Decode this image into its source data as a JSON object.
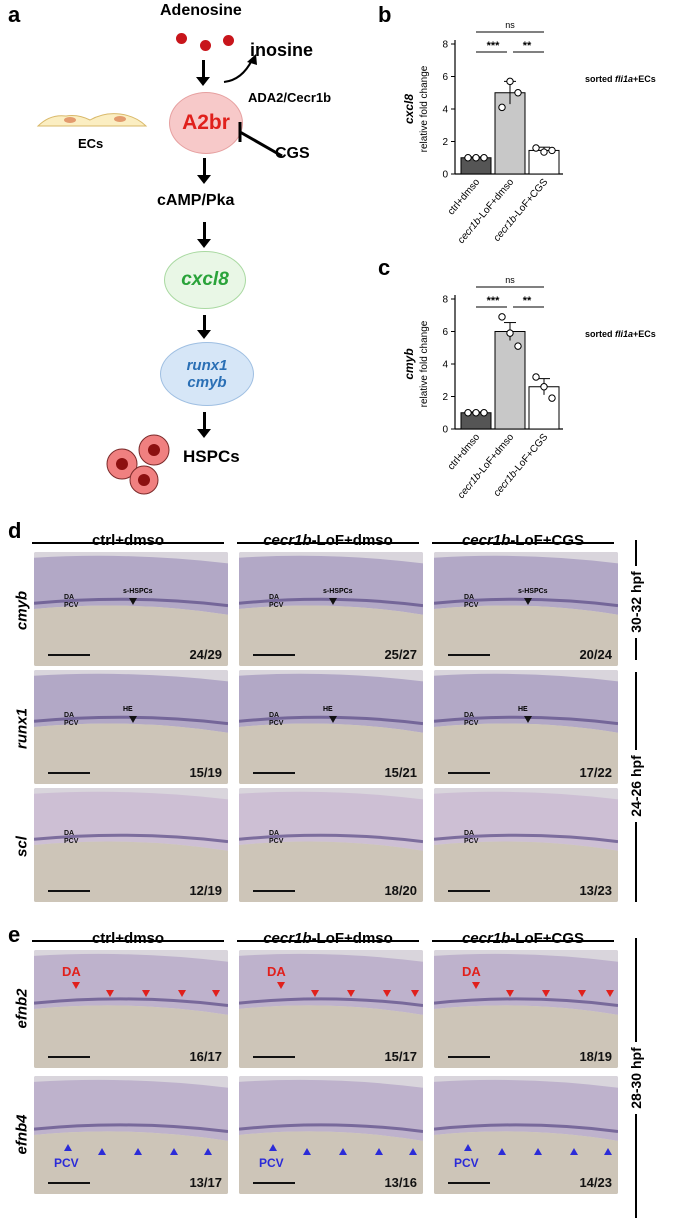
{
  "panel_labels": {
    "a": "a",
    "b": "b",
    "c": "c",
    "d": "d",
    "e": "e"
  },
  "pathway": {
    "adenosine": "Adenosine",
    "inosine": "inosine",
    "enzyme": "ADA2/Cecr1b",
    "receptor": "A2br",
    "inhibitor": "CGS",
    "ecs": "ECs",
    "camp": "cAMP/Pka",
    "cxcl8": "cxcl8",
    "runx1": "runx1",
    "cmyb": "cmyb",
    "hspcs": "HSPCs"
  },
  "colors": {
    "a2br_fill": "#f7c9c9",
    "a2br_text": "#e0201c",
    "cxcl8_fill": "#e9f7e6",
    "cxcl8_text": "#2aa33a",
    "runx_fill": "#d6e6f7",
    "runx_text": "#2a6fb5",
    "dot_red": "#c8151b",
    "bar_dark": "#555555",
    "bar_light": "#c8c8c8",
    "bar_white": "#ffffff",
    "tri_blue": "#2b2bd8",
    "tri_red": "#e0201c"
  },
  "chart_data": [
    {
      "type": "bar",
      "id": "b",
      "categories": [
        "ctrl+dmso",
        "cecr1b-LoF+dmso",
        "cecr1b-LoF+CGS"
      ],
      "values": [
        1.0,
        5.0,
        1.45
      ],
      "errors": [
        0.05,
        0.7,
        0.2
      ],
      "points": [
        [
          1.0,
          1.0,
          1.0
        ],
        [
          4.1,
          5.7,
          5.0
        ],
        [
          1.6,
          1.35,
          1.45
        ]
      ],
      "ylabel_gene": "cxcl8",
      "ylabel": "relative fold change",
      "ylim": [
        0,
        8
      ],
      "yticks": [
        0,
        2,
        4,
        6,
        8
      ],
      "note": "sorted fli1a+ECs",
      "sig": [
        {
          "text": "ns"
        },
        {
          "text": "***"
        },
        {
          "text": "**"
        }
      ]
    },
    {
      "type": "bar",
      "id": "c",
      "categories": [
        "ctrl+dmso",
        "cecr1b-LoF+dmso",
        "cecr1b-LoF+CGS"
      ],
      "values": [
        1.0,
        6.0,
        2.6
      ],
      "errors": [
        0.05,
        0.55,
        0.5
      ],
      "points": [
        [
          1.0,
          1.0,
          1.0
        ],
        [
          6.9,
          5.9,
          5.1
        ],
        [
          3.2,
          2.6,
          1.9
        ]
      ],
      "ylabel_gene": "cmyb",
      "ylabel": "relative fold change",
      "ylim": [
        0,
        8
      ],
      "yticks": [
        0,
        2,
        4,
        6,
        8
      ],
      "note": "sorted fli1a+ECs",
      "sig": [
        {
          "text": "ns"
        },
        {
          "text": "***"
        },
        {
          "text": "**"
        }
      ]
    }
  ],
  "panel_d": {
    "columns": [
      "ctrl+dmso",
      "-LoF+dmso",
      "-LoF+CGS"
    ],
    "col_prefix": "cecr1b",
    "rows": [
      {
        "gene": "cmyb",
        "counts": [
          "24/29",
          "25/27",
          "20/24"
        ],
        "marker": "s-HSPCs",
        "anat": [
          "DA",
          "PCV"
        ]
      },
      {
        "gene": "runx1",
        "counts": [
          "15/19",
          "15/21",
          "17/22"
        ],
        "marker": "HE",
        "anat": [
          "DA",
          "PCV"
        ]
      },
      {
        "gene": "scl",
        "counts": [
          "12/19",
          "18/20",
          "13/23"
        ],
        "marker": "",
        "anat": [
          "DA",
          "PCV"
        ]
      }
    ],
    "stage_top": "30-32 hpf",
    "stage_bottom": "24-26 hpf"
  },
  "panel_e": {
    "columns": [
      "ctrl+dmso",
      "-LoF+dmso",
      "-LoF+CGS"
    ],
    "col_prefix": "cecr1b",
    "rows": [
      {
        "gene": "efnb2",
        "counts": [
          "16/17",
          "15/17",
          "18/19"
        ],
        "marker": "DA"
      },
      {
        "gene": "efnb4",
        "counts": [
          "13/17",
          "13/16",
          "14/23"
        ],
        "marker": "PCV"
      }
    ],
    "stage": "28-30 hpf"
  }
}
